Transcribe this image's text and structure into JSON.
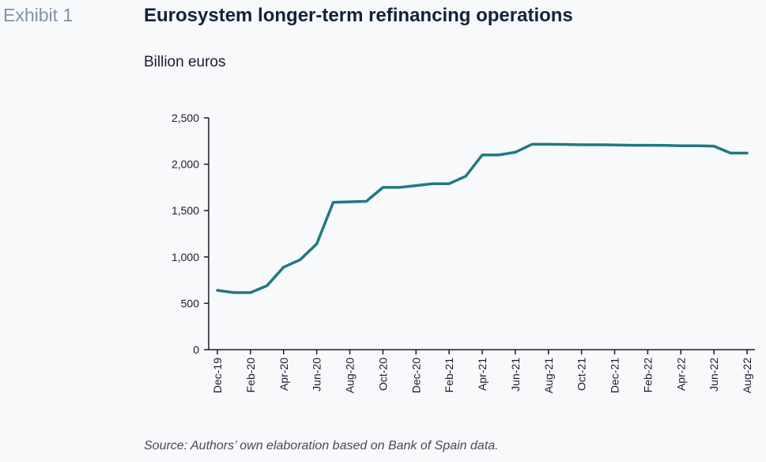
{
  "header": {
    "exhibit": "Exhibit 1",
    "title": "Eurosystem longer-term refinancing operations",
    "subtitle": "Billion euros"
  },
  "footer": {
    "source": "Source: Authors’ own elaboration based on Bank of Spain data."
  },
  "colors": {
    "line": "#1f7a80",
    "axis": "#1b1b2f"
  },
  "chart_data": {
    "type": "line",
    "grid": false,
    "legend": "none",
    "ylim": [
      0,
      2500
    ],
    "yticks": [
      {
        "value": 0,
        "label": "0"
      },
      {
        "value": 500,
        "label": "500"
      },
      {
        "value": 1000,
        "label": "1,000"
      },
      {
        "value": 1500,
        "label": "1,500"
      },
      {
        "value": 2000,
        "label": "2,000"
      },
      {
        "value": 2500,
        "label": "2,500"
      }
    ],
    "x": [
      "Dec-19",
      "Jan-20",
      "Feb-20",
      "Mar-20",
      "Apr-20",
      "May-20",
      "Jun-20",
      "Jul-20",
      "Aug-20",
      "Sep-20",
      "Oct-20",
      "Nov-20",
      "Dec-20",
      "Jan-21",
      "Feb-21",
      "Mar-21",
      "Apr-21",
      "May-21",
      "Jun-21",
      "Jul-21",
      "Aug-21",
      "Sep-21",
      "Oct-21",
      "Nov-21",
      "Dec-21",
      "Jan-22",
      "Feb-22",
      "Mar-22",
      "Apr-22",
      "May-22",
      "Jun-22",
      "Jul-22",
      "Aug-22"
    ],
    "xtick_labels": [
      "Dec-19",
      "Feb-20",
      "Apr-20",
      "Jun-20",
      "Aug-20",
      "Oct-20",
      "Dec-20",
      "Feb-21",
      "Apr-21",
      "Jun-21",
      "Aug-21",
      "Oct-21",
      "Dec-21",
      "Feb-22",
      "Apr-22",
      "Jun-22",
      "Aug-22"
    ],
    "series": [
      {
        "values": [
          640,
          615,
          615,
          690,
          890,
          970,
          1140,
          1590,
          1595,
          1600,
          1750,
          1750,
          1770,
          1790,
          1790,
          1870,
          2100,
          2100,
          2130,
          2215,
          2215,
          2213,
          2210,
          2210,
          2208,
          2205,
          2205,
          2203,
          2200,
          2200,
          2195,
          2120,
          2120
        ]
      }
    ]
  }
}
